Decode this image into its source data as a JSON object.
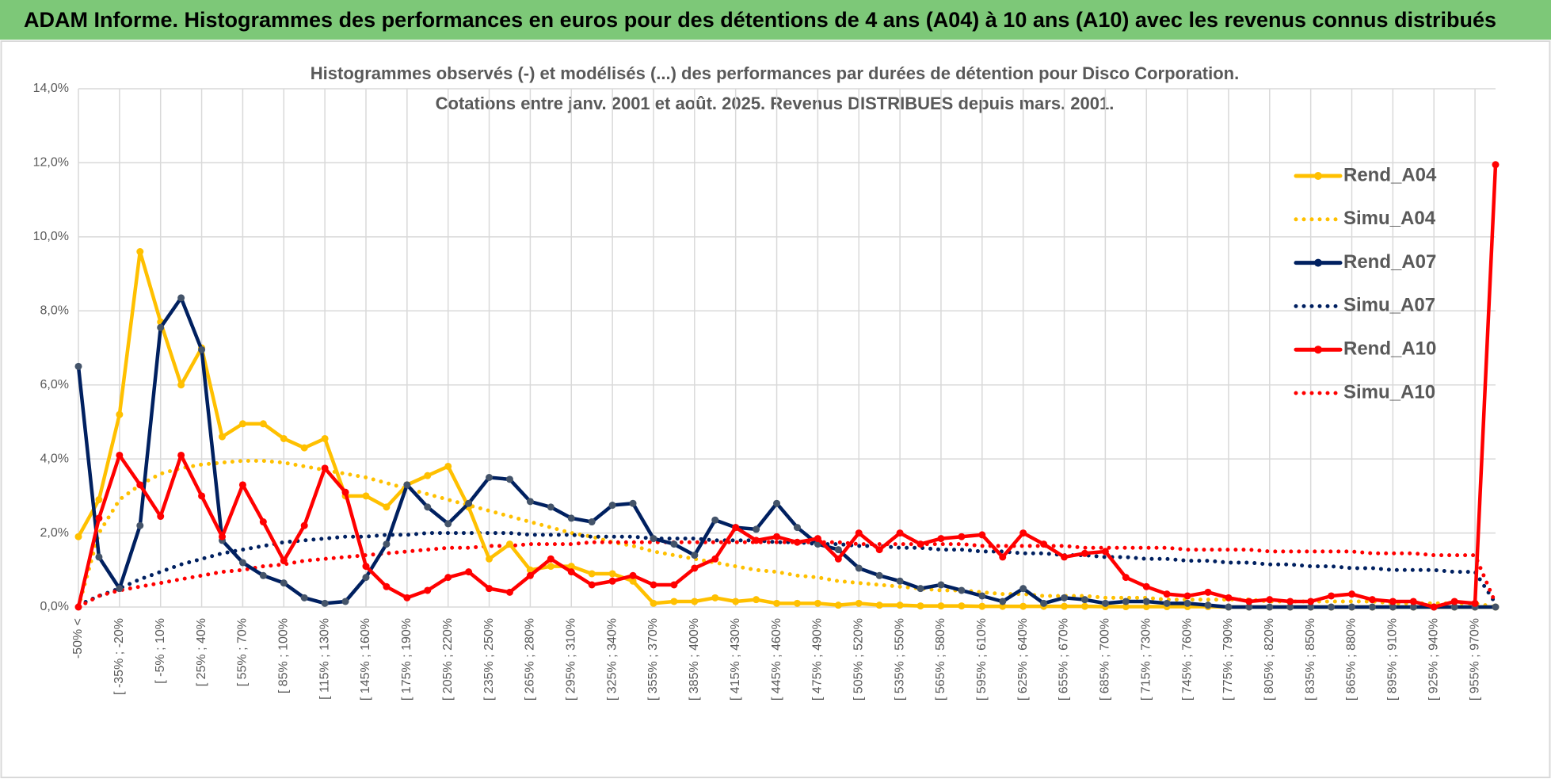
{
  "header": {
    "title": "ADAM Informe. Histogrammes des performances en euros pour des détentions de 4 ans (A04) à 10 ans (A10) avec les revenus connus distribués"
  },
  "chart_data": {
    "type": "line",
    "title": "Histogrammes observés (-) et modélisés (...) des performances par durées de détention pour Disco Corporation.",
    "subtitle": "Cotations entre janv. 2001 et août. 2025. Revenus DISTRIBUES depuis mars. 2001.",
    "categories": [
      "-50% <",
      null,
      "[ -35% ; -20%",
      null,
      "[ -5% ; 10%",
      null,
      "[ 25% ; 40%",
      null,
      "[ 55% ; 70%",
      null,
      "[ 85% ; 100%",
      null,
      "[ 115% ; 130%",
      null,
      "[ 145% ; 160%",
      null,
      "[ 175% ; 190%",
      null,
      "[ 205% ; 220%",
      null,
      "[ 235% ; 250%",
      null,
      "[ 265% ; 280%",
      null,
      "[ 295% ; 310%",
      null,
      "[ 325% ; 340%",
      null,
      "[ 355% ; 370%",
      null,
      "[ 385% ; 400%",
      null,
      "[ 415% ; 430%",
      null,
      "[ 445% ; 460%",
      null,
      "[ 475% ; 490%",
      null,
      "[ 505% ; 520%",
      null,
      "[ 535% ; 550%",
      null,
      "[ 565% ; 580%",
      null,
      "[ 595% ; 610%",
      null,
      "[ 625% ; 640%",
      null,
      "[ 655% ; 670%",
      null,
      "[ 685% ; 700%",
      null,
      "[ 715% ; 730%",
      null,
      "[ 745% ; 760%",
      null,
      "[ 775% ; 790%",
      null,
      "[ 805% ; 820%",
      null,
      "[ 835% ; 850%",
      null,
      "[ 865% ; 880%",
      null,
      "[ 895% ; 910%",
      null,
      "[ 925% ; 940%",
      null,
      "[ 955% ; 970%",
      null
    ],
    "ylim": [
      0,
      14
    ],
    "yticks": [
      {
        "value": 0,
        "label": "0,0%"
      },
      {
        "value": 2,
        "label": "2,0%"
      },
      {
        "value": 4,
        "label": "4,0%"
      },
      {
        "value": 6,
        "label": "6,0%"
      },
      {
        "value": 8,
        "label": "8,0%"
      },
      {
        "value": 10,
        "label": "10,0%"
      },
      {
        "value": 12,
        "label": "12,0%"
      },
      {
        "value": 14,
        "label": "14,0%"
      }
    ],
    "grid": true,
    "legend": "right",
    "series": [
      {
        "name": "Rend_A04",
        "color": "#ffc000",
        "style": "solid",
        "values": [
          1.9,
          2.9,
          5.2,
          9.6,
          7.7,
          6.0,
          7.0,
          4.6,
          4.95,
          4.95,
          4.55,
          4.3,
          4.55,
          3.0,
          3.0,
          2.7,
          3.3,
          3.55,
          3.8,
          2.7,
          1.3,
          1.7,
          1.0,
          1.1,
          1.1,
          0.9,
          0.9,
          0.7,
          0.1,
          0.15,
          0.15,
          0.25,
          0.15,
          0.2,
          0.1,
          0.1,
          0.1,
          0.05,
          0.1,
          0.05,
          0.05,
          0.03,
          0.03,
          0.03,
          0.02,
          0.02,
          0.02,
          0.02,
          0.02,
          0.02,
          0.01,
          0.01,
          0.01,
          0.01,
          0.01,
          0.01,
          0,
          0,
          0,
          0,
          0,
          0,
          0,
          0,
          0,
          0,
          0,
          0,
          0,
          0
        ]
      },
      {
        "name": "Simu_A04",
        "color": "#ffc000",
        "style": "dotted",
        "values": [
          0,
          2.0,
          2.9,
          3.3,
          3.6,
          3.75,
          3.85,
          3.9,
          3.95,
          3.95,
          3.9,
          3.8,
          3.7,
          3.6,
          3.5,
          3.35,
          3.2,
          3.05,
          2.9,
          2.75,
          2.6,
          2.45,
          2.3,
          2.15,
          2.0,
          1.9,
          1.75,
          1.65,
          1.5,
          1.4,
          1.3,
          1.2,
          1.1,
          1.0,
          0.95,
          0.85,
          0.8,
          0.7,
          0.65,
          0.6,
          0.55,
          0.5,
          0.45,
          0.45,
          0.4,
          0.35,
          0.35,
          0.3,
          0.3,
          0.3,
          0.25,
          0.25,
          0.25,
          0.2,
          0.2,
          0.2,
          0.2,
          0.2,
          0.15,
          0.15,
          0.15,
          0.15,
          0.15,
          0.15,
          0.1,
          0.1,
          0.1,
          0.1,
          0.1,
          0
        ]
      },
      {
        "name": "Rend_A07",
        "color": "#002060",
        "style": "solid",
        "values": [
          6.5,
          1.35,
          0.5,
          2.2,
          7.55,
          8.35,
          6.95,
          1.8,
          1.2,
          0.85,
          0.65,
          0.25,
          0.1,
          0.15,
          0.8,
          1.7,
          3.3,
          2.7,
          2.25,
          2.8,
          3.5,
          3.45,
          2.85,
          2.7,
          2.4,
          2.3,
          2.75,
          2.8,
          1.85,
          1.7,
          1.4,
          2.35,
          2.15,
          2.1,
          2.8,
          2.15,
          1.7,
          1.55,
          1.05,
          0.85,
          0.7,
          0.5,
          0.6,
          0.45,
          0.3,
          0.15,
          0.5,
          0.1,
          0.25,
          0.2,
          0.1,
          0.15,
          0.15,
          0.1,
          0.1,
          0.05,
          0,
          0,
          0,
          0,
          0,
          0,
          0,
          0,
          0,
          0,
          0,
          0,
          0,
          0
        ]
      },
      {
        "name": "Simu_A07",
        "color": "#002060",
        "style": "dotted",
        "values": [
          0.05,
          0.3,
          0.5,
          0.75,
          0.95,
          1.15,
          1.3,
          1.45,
          1.55,
          1.65,
          1.75,
          1.8,
          1.85,
          1.9,
          1.9,
          1.95,
          1.95,
          2.0,
          2.0,
          2.0,
          2.0,
          2.0,
          1.95,
          1.95,
          1.95,
          1.9,
          1.9,
          1.9,
          1.85,
          1.85,
          1.85,
          1.8,
          1.8,
          1.8,
          1.75,
          1.75,
          1.7,
          1.7,
          1.65,
          1.65,
          1.6,
          1.6,
          1.55,
          1.55,
          1.5,
          1.5,
          1.45,
          1.45,
          1.4,
          1.4,
          1.35,
          1.35,
          1.3,
          1.3,
          1.25,
          1.25,
          1.2,
          1.2,
          1.15,
          1.15,
          1.1,
          1.1,
          1.05,
          1.05,
          1.0,
          1.0,
          1.0,
          0.95,
          0.95,
          0.1
        ]
      },
      {
        "name": "Rend_A10",
        "color": "#ff0000",
        "style": "solid",
        "values": [
          0.0,
          2.4,
          4.1,
          3.3,
          2.45,
          4.1,
          3.0,
          1.9,
          3.3,
          2.3,
          1.25,
          2.2,
          3.75,
          3.1,
          1.1,
          0.55,
          0.25,
          0.45,
          0.8,
          0.95,
          0.5,
          0.4,
          0.85,
          1.3,
          0.95,
          0.6,
          0.7,
          0.85,
          0.6,
          0.6,
          1.05,
          1.3,
          2.15,
          1.8,
          1.9,
          1.75,
          1.85,
          1.3,
          2.0,
          1.55,
          2.0,
          1.7,
          1.85,
          1.9,
          1.95,
          1.35,
          2.0,
          1.7,
          1.35,
          1.45,
          1.5,
          0.8,
          0.55,
          0.35,
          0.3,
          0.4,
          0.25,
          0.15,
          0.2,
          0.15,
          0.15,
          0.3,
          0.35,
          0.2,
          0.15,
          0.15,
          0.0,
          0.15,
          0.1,
          11.95
        ]
      },
      {
        "name": "Simu_A10",
        "color": "#ff0000",
        "style": "dotted",
        "values": [
          0.0,
          0.3,
          0.45,
          0.55,
          0.65,
          0.75,
          0.85,
          0.95,
          1.0,
          1.1,
          1.15,
          1.25,
          1.3,
          1.35,
          1.4,
          1.45,
          1.5,
          1.55,
          1.6,
          1.6,
          1.65,
          1.65,
          1.7,
          1.7,
          1.7,
          1.75,
          1.75,
          1.75,
          1.75,
          1.75,
          1.75,
          1.75,
          1.75,
          1.75,
          1.75,
          1.75,
          1.75,
          1.75,
          1.7,
          1.7,
          1.7,
          1.7,
          1.7,
          1.7,
          1.65,
          1.65,
          1.65,
          1.65,
          1.65,
          1.6,
          1.6,
          1.6,
          1.6,
          1.6,
          1.55,
          1.55,
          1.55,
          1.55,
          1.5,
          1.5,
          1.5,
          1.5,
          1.5,
          1.45,
          1.45,
          1.45,
          1.4,
          1.4,
          1.4,
          0.1
        ]
      }
    ]
  }
}
